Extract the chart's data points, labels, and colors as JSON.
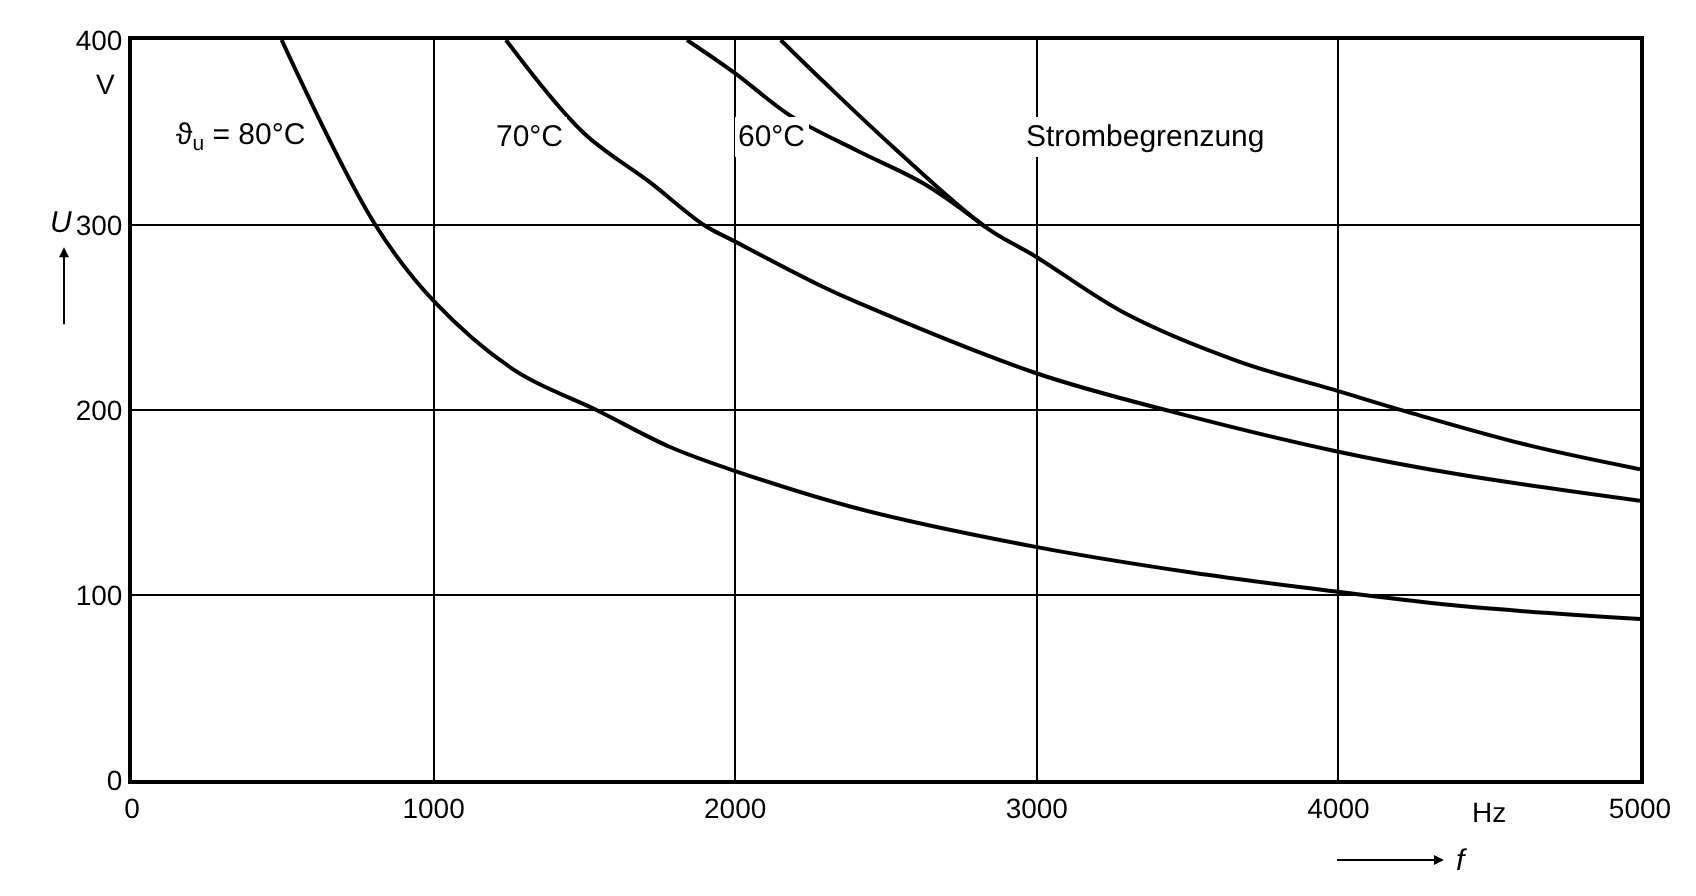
{
  "chart_data": {
    "type": "line",
    "xlabel": "f",
    "ylabel": "U",
    "annotations": [
      "V",
      "Hz"
    ],
    "xlim": [
      0,
      5000
    ],
    "xticks": [
      0,
      1000,
      2000,
      3000,
      4000,
      5000
    ],
    "ylim": [
      0,
      400
    ],
    "yticks": [
      0,
      100,
      200,
      300,
      400
    ],
    "grid": true,
    "legend": false,
    "marker": "none",
    "line_style": "solid",
    "series": [
      {
        "name": "ϑ$_{u}$ = 80°C",
        "color": "#000000",
        "x": [
          496,
          807,
          1000,
          1273,
          1540,
          1784,
          2000,
          2400,
          2996,
          3518,
          3984,
          4407,
          5000
        ],
        "values": [
          400,
          300,
          259,
          221,
          200,
          180,
          167,
          147,
          126,
          112,
          102,
          94,
          87
        ]
      },
      {
        "name": "70°C",
        "color": "#000000",
        "x": [
          1240,
          1496,
          1718,
          1896,
          2000,
          2273,
          2407,
          2996,
          3451,
          3984,
          4407,
          5000
        ],
        "values": [
          400,
          350,
          323,
          300,
          291,
          268,
          258,
          220,
          199,
          178,
          165,
          151
        ]
      },
      {
        "name": "60°C",
        "color": "#000000",
        "x": [
          1840,
          2000,
          2184,
          2407,
          2629,
          2829
        ],
        "values": [
          400,
          382,
          359,
          340,
          322,
          299
        ]
      },
      {
        "name": "Strombegrenzung",
        "color": "#000000",
        "x": [
          2151,
          2296,
          2518,
          2829,
          2996,
          3296,
          3673,
          3984,
          4229,
          4629,
          5000
        ],
        "values": [
          400,
          377,
          343,
          299,
          283,
          252,
          226,
          211,
          199,
          181,
          168
        ]
      }
    ]
  }
}
